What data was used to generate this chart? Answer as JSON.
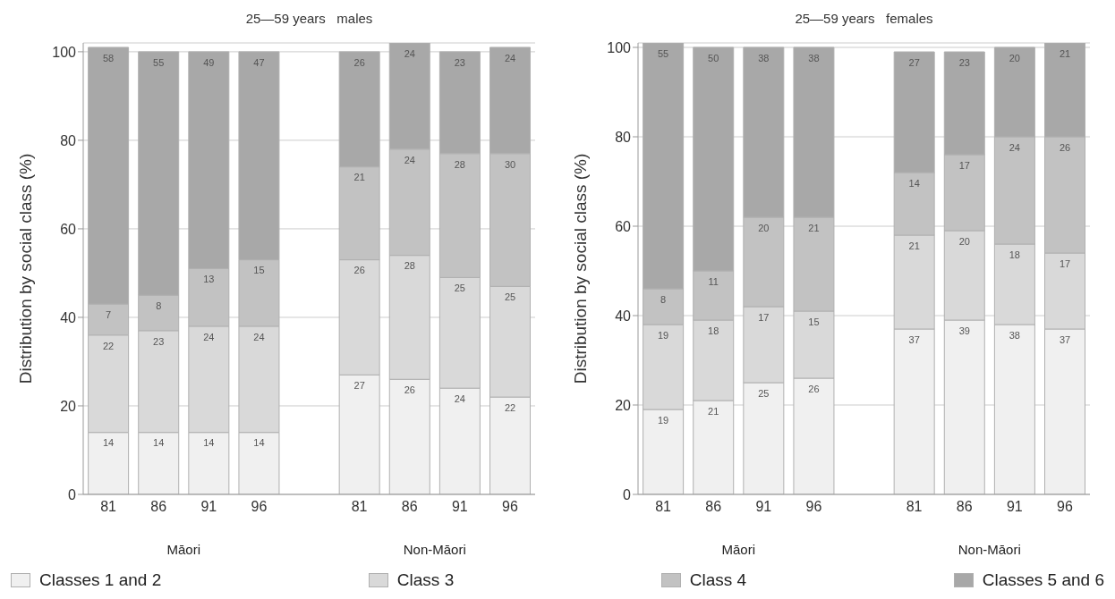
{
  "chart_data": [
    {
      "type": "bar",
      "title": "25—59 years   males",
      "ylabel": "Distribution by social class (%)",
      "categories": [
        "81",
        "86",
        "91",
        "96",
        null,
        "81",
        "86",
        "91",
        "96"
      ],
      "stacked": true,
      "data_labels": true,
      "grid": "y",
      "legend": "bottom",
      "ylim": [
        0,
        102
      ],
      "yticks": [
        0,
        20,
        40,
        60,
        80,
        100
      ],
      "annotations": [
        "Māori",
        "Non-Māori"
      ],
      "series": [
        {
          "name": "Classes 1 and 2",
          "color": "#f0f0f0",
          "values": [
            14,
            14,
            14,
            14,
            null,
            27,
            26,
            24,
            22
          ]
        },
        {
          "name": "Class 3",
          "color": "#d9d9d9",
          "values": [
            22,
            23,
            24,
            24,
            null,
            26,
            28,
            25,
            25
          ]
        },
        {
          "name": "Class 4",
          "color": "#c2c2c2",
          "values": [
            7,
            8,
            13,
            15,
            null,
            21,
            24,
            28,
            30
          ]
        },
        {
          "name": "Classes 5 and 6",
          "color": "#a8a8a8",
          "values": [
            58,
            55,
            49,
            47,
            null,
            26,
            24,
            23,
            24
          ]
        }
      ]
    },
    {
      "type": "bar",
      "title": "25—59 years   females",
      "ylabel": "Distribution by social class (%)",
      "categories": [
        "81",
        "86",
        "91",
        "96",
        null,
        "81",
        "86",
        "91",
        "96"
      ],
      "stacked": true,
      "data_labels": true,
      "grid": "y",
      "ylim": [
        0,
        101
      ],
      "yticks": [
        0,
        20,
        40,
        60,
        80,
        100
      ],
      "annotations": [
        "Māori",
        "Non-Māori"
      ],
      "series": [
        {
          "color": "#f0f0f0",
          "values": [
            19,
            21,
            25,
            26,
            null,
            37,
            39,
            38,
            37
          ]
        },
        {
          "color": "#d9d9d9",
          "values": [
            19,
            18,
            17,
            15,
            null,
            21,
            20,
            18,
            17
          ]
        },
        {
          "color": "#c2c2c2",
          "values": [
            8,
            11,
            20,
            21,
            null,
            14,
            17,
            24,
            26
          ]
        },
        {
          "color": "#a8a8a8",
          "values": [
            55,
            50,
            38,
            38,
            null,
            27,
            23,
            20,
            21
          ]
        }
      ]
    }
  ]
}
